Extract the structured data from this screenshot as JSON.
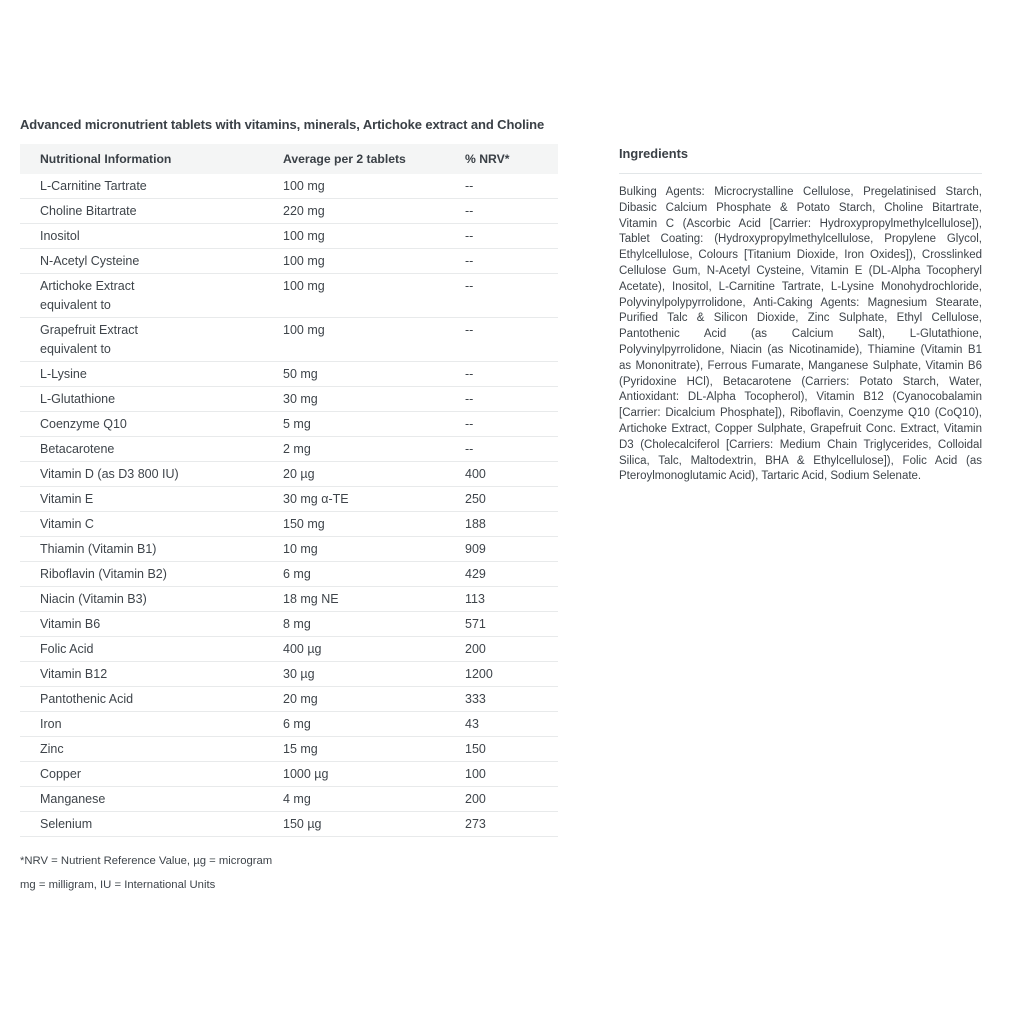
{
  "page": {
    "title": "Advanced micronutrient tablets with vitamins, minerals, Artichoke extract and Choline"
  },
  "colors": {
    "text": "#3e444a",
    "table_header_bg": "#f4f5f5",
    "row_divider": "#e8eaeb"
  },
  "table": {
    "headers": [
      "Nutritional Information",
      "Average per 2 tablets",
      "% NRV*"
    ],
    "rows": [
      {
        "name": "L-Carnitine Tartrate",
        "amount": "100 mg",
        "nrv": "--"
      },
      {
        "name": "Choline Bitartrate",
        "amount": "220 mg",
        "nrv": "--"
      },
      {
        "name": "Inositol",
        "amount": "100 mg",
        "nrv": "--"
      },
      {
        "name": "N-Acetyl Cysteine",
        "amount": "100 mg",
        "nrv": "--"
      },
      {
        "name": "Artichoke Extract\nequivalent to",
        "amount": "100 mg",
        "nrv": "--"
      },
      {
        "name": "Grapefruit Extract\nequivalent to",
        "amount": "100 mg",
        "nrv": "--"
      },
      {
        "name": "L-Lysine",
        "amount": "50 mg",
        "nrv": "--"
      },
      {
        "name": "L-Glutathione",
        "amount": "30 mg",
        "nrv": "--"
      },
      {
        "name": "Coenzyme Q10",
        "amount": "5 mg",
        "nrv": "--"
      },
      {
        "name": "Betacarotene",
        "amount": "2 mg",
        "nrv": "--"
      },
      {
        "name": "Vitamin D (as D3 800 IU)",
        "amount": "20 µg",
        "nrv": "400"
      },
      {
        "name": "Vitamin E",
        "amount": "30 mg α-TE",
        "nrv": "250"
      },
      {
        "name": "Vitamin C",
        "amount": "150 mg",
        "nrv": "188"
      },
      {
        "name": "Thiamin (Vitamin B1)",
        "amount": "10 mg",
        "nrv": "909"
      },
      {
        "name": "Riboflavin (Vitamin B2)",
        "amount": "6 mg",
        "nrv": "429"
      },
      {
        "name": "Niacin (Vitamin B3)",
        "amount": "18 mg NE",
        "nrv": "113"
      },
      {
        "name": "Vitamin B6",
        "amount": "8 mg",
        "nrv": "571"
      },
      {
        "name": "Folic Acid",
        "amount": "400 µg",
        "nrv": "200"
      },
      {
        "name": "Vitamin B12",
        "amount": "30 µg",
        "nrv": "1200"
      },
      {
        "name": "Pantothenic Acid",
        "amount": "20 mg",
        "nrv": "333"
      },
      {
        "name": "Iron",
        "amount": "6 mg",
        "nrv": "43"
      },
      {
        "name": "Zinc",
        "amount": "15 mg",
        "nrv": "150"
      },
      {
        "name": "Copper",
        "amount": "1000 µg",
        "nrv": "100"
      },
      {
        "name": "Manganese",
        "amount": "4 mg",
        "nrv": "200"
      },
      {
        "name": "Selenium",
        "amount": "150 µg",
        "nrv": "273"
      }
    ],
    "footnotes": [
      "*NRV = Nutrient Reference Value, µg = microgram",
      "mg = milligram, IU = International Units"
    ]
  },
  "ingredients": {
    "heading": "Ingredients",
    "text": "Bulking Agents: Microcrystalline Cellulose, Pregelatinised Starch, Dibasic Calcium Phosphate & Potato Starch, Choline Bitartrate, Vitamin C (Ascorbic Acid [Carrier: Hydroxypropylmethylcellulose]), Tablet Coating: (Hydroxypropylmethylcellulose, Propylene Glycol, Ethylcellulose, Colours [Titanium Dioxide, Iron Oxides]), Crosslinked Cellulose Gum, N-Acetyl Cysteine, Vitamin E (DL-Alpha Tocopheryl Acetate), Inositol, L-Carnitine Tartrate, L-Lysine Monohydrochloride, Polyvinylpolypyrrolidone, Anti-Caking Agents: Magnesium Stearate, Purified Talc & Silicon Dioxide, Zinc Sulphate, Ethyl Cellulose, Pantothenic Acid (as Calcium Salt), L-Glutathione, Polyvinylpyrrolidone, Niacin (as Nicotinamide), Thiamine (Vitamin B1 as Mononitrate), Ferrous Fumarate, Manganese Sulphate, Vitamin B6 (Pyridoxine HCl), Betacarotene (Carriers: Potato Starch, Water, Antioxidant: DL-Alpha Tocopherol), Vitamin B12 (Cyanocobalamin [Carrier: Dicalcium Phosphate]), Riboflavin, Coenzyme Q10 (CoQ10), Artichoke Extract, Copper Sulphate, Grapefruit Conc. Extract, Vitamin D3 (Cholecalciferol [Carriers: Medium Chain Triglycerides, Colloidal Silica, Talc, Maltodextrin, BHA & Ethylcellulose]), Folic Acid (as Pteroylmonoglutamic Acid), Tartaric Acid, Sodium Selenate."
  }
}
